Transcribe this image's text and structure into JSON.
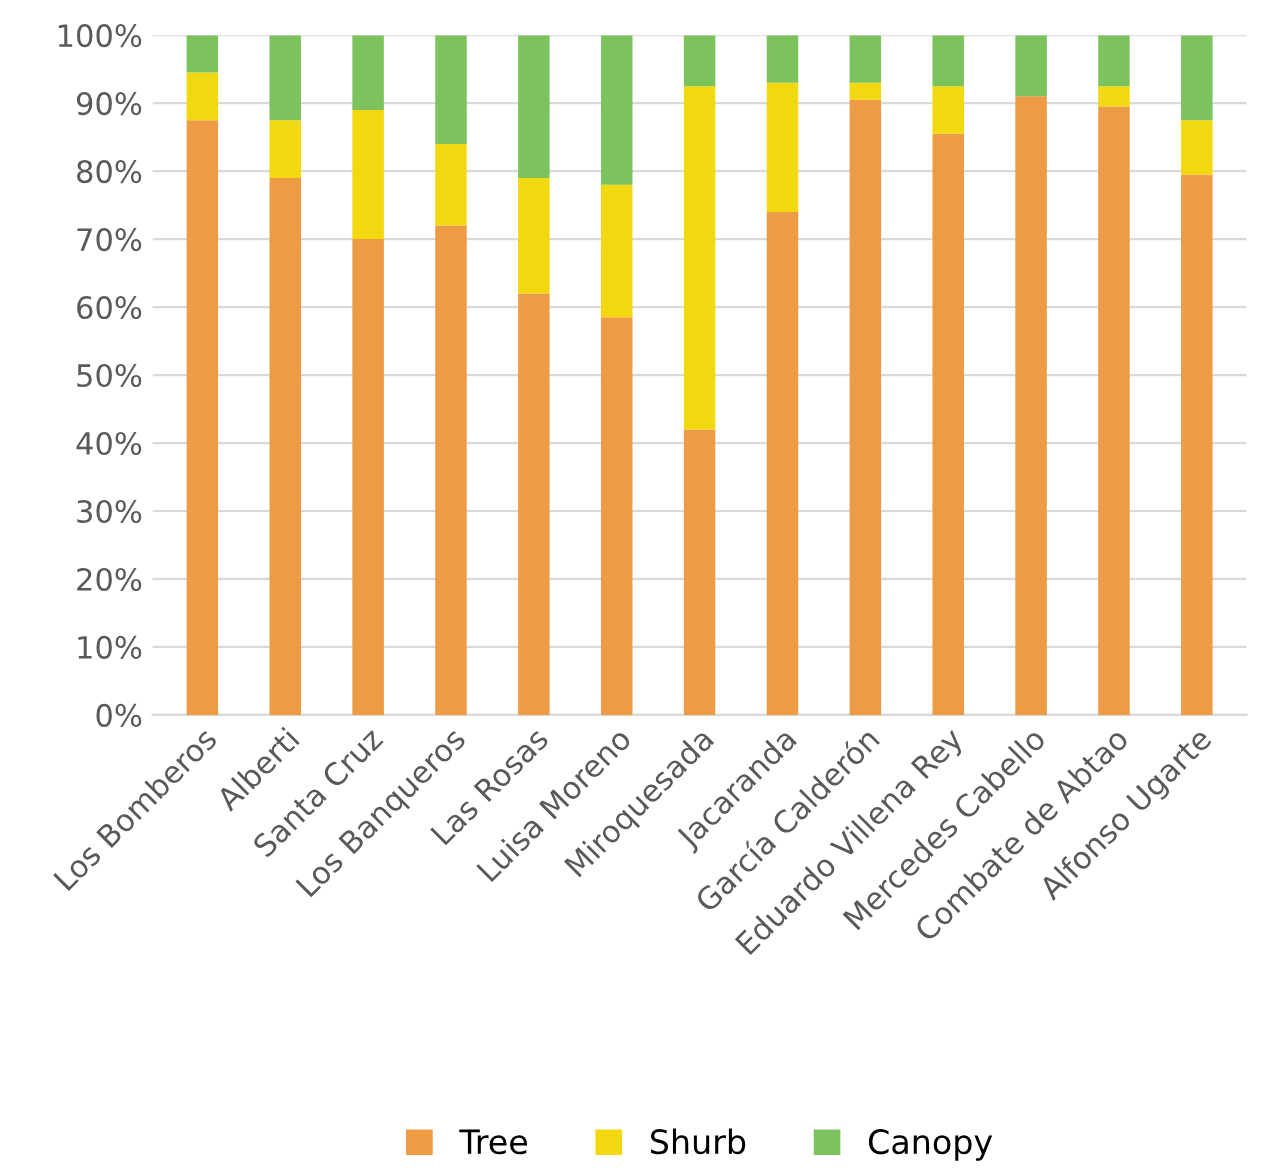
{
  "chart_data": {
    "type": "bar",
    "stacked": true,
    "categories": [
      "Los Bomberos",
      "Alberti",
      "Santa Cruz",
      "Los Banqueros",
      "Las Rosas",
      "Luisa Moreno",
      "Miroquesada",
      "Jacaranda",
      "García Calderón",
      "Eduardo Villena Rey",
      "Mercedes Cabello",
      "Combate de Abtao",
      "Alfonso Ugarte"
    ],
    "series": [
      {
        "name": "Tree",
        "color": "#ed9b45",
        "values": [
          87.5,
          79,
          70,
          72,
          62,
          58.5,
          42,
          74,
          90.5,
          85.5,
          91,
          89.5,
          79.5
        ]
      },
      {
        "name": "Shurb",
        "color": "#f2d80f",
        "values": [
          7,
          8.5,
          19,
          12,
          17,
          19.5,
          50.5,
          19,
          2.5,
          7,
          0,
          3,
          8
        ]
      },
      {
        "name": "Canopy",
        "color": "#7cc35e",
        "values": [
          5.5,
          12.5,
          11,
          16,
          21,
          22,
          7.5,
          7,
          7,
          7.5,
          9,
          7.5,
          12.5
        ]
      }
    ],
    "ylim": [
      0,
      100
    ],
    "yticks": [
      {
        "value": 0,
        "label": "0%"
      },
      {
        "value": 10,
        "label": "10%"
      },
      {
        "value": 20,
        "label": "20%"
      },
      {
        "value": 30,
        "label": "30%"
      },
      {
        "value": 40,
        "label": "40%"
      },
      {
        "value": 50,
        "label": "50%"
      },
      {
        "value": 60,
        "label": "60%"
      },
      {
        "value": 70,
        "label": "70%"
      },
      {
        "value": 80,
        "label": "80%"
      },
      {
        "value": 90,
        "label": "90%"
      },
      {
        "value": 100,
        "label": "100%"
      }
    ],
    "grid": "y",
    "legend": "bottom"
  }
}
